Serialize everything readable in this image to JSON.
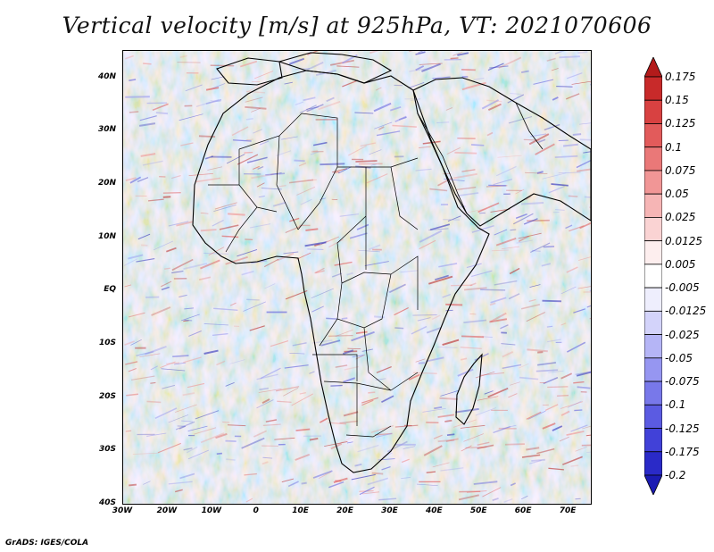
{
  "title": "Vertical velocity [m/s] at 925hPa, VT: 2021070606",
  "credit": "GrADS: IGES/COLA",
  "map": {
    "lat_labels": [
      "40N",
      "30N",
      "20N",
      "10N",
      "EQ",
      "10S",
      "20S",
      "30S",
      "40S"
    ],
    "lon_labels": [
      "30W",
      "20W",
      "10W",
      "0",
      "10E",
      "20E",
      "30E",
      "40E",
      "50E",
      "60E",
      "70E"
    ],
    "lat_range": [
      -40,
      45
    ],
    "lon_range": [
      -30,
      75
    ]
  },
  "colorbar": {
    "labels": [
      "0.175",
      "0.15",
      "0.125",
      "0.1",
      "0.075",
      "0.05",
      "0.025",
      "0.0125",
      "0.005",
      "-0.005",
      "-0.0125",
      "-0.025",
      "-0.05",
      "-0.075",
      "-0.1",
      "-0.125",
      "-0.175",
      "-0.2"
    ],
    "colors": [
      "#b31b1b",
      "#c82a2a",
      "#d84141",
      "#e25b5b",
      "#ea7878",
      "#f19696",
      "#f6b5b5",
      "#fad3d3",
      "#fdeeee",
      "#ffffff",
      "#eeeefd",
      "#d3d3fa",
      "#b5b5f6",
      "#9696f1",
      "#7878ea",
      "#5b5be2",
      "#4141d8",
      "#2a2ac8",
      "#1b1bb3"
    ]
  }
}
